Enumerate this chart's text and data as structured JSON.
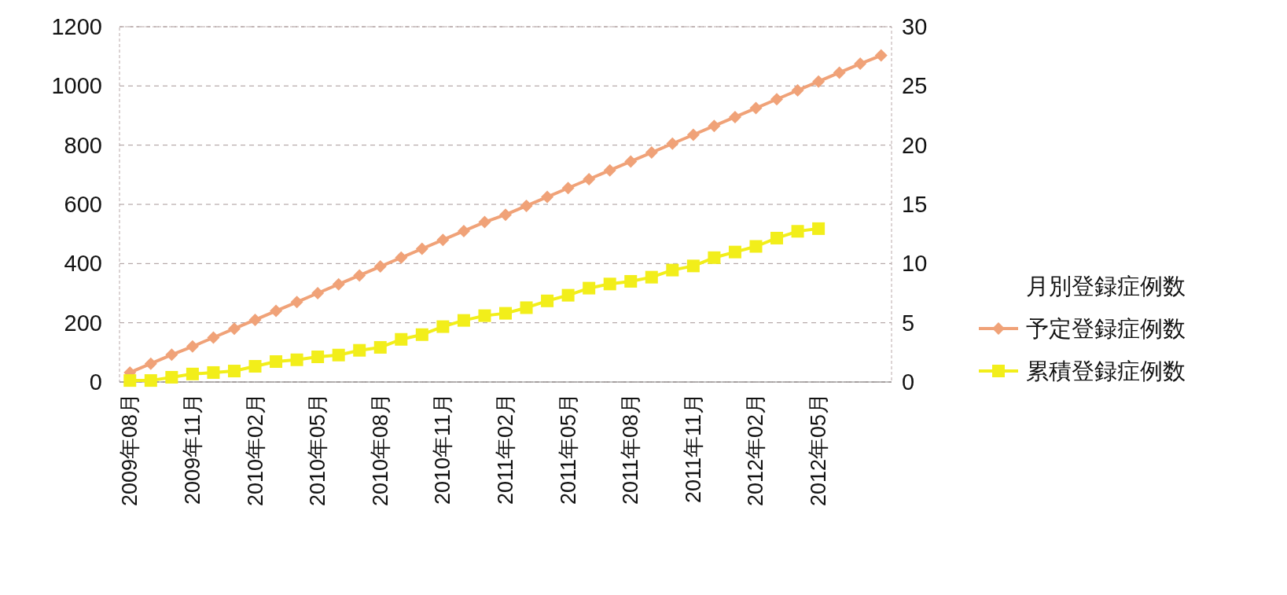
{
  "chart_data": {
    "type": "line",
    "categories": [
      "2009年08月",
      null,
      null,
      "2009年11月",
      null,
      null,
      "2010年02月",
      null,
      null,
      "2010年05月",
      null,
      null,
      "2010年08月",
      null,
      null,
      "2010年11月",
      null,
      null,
      "2011年02月",
      null,
      null,
      "2011年05月",
      null,
      null,
      "2011年08月",
      null,
      null,
      "2011年11月",
      null,
      null,
      "2012年02月",
      null,
      null,
      "2012年05月",
      null,
      null,
      null
    ],
    "series": [
      {
        "name": "月別登録症例数",
        "values": [
          null,
          null,
          null,
          null,
          null,
          null,
          null,
          null,
          null,
          null,
          null,
          null,
          null,
          null,
          null,
          null,
          null,
          null,
          null,
          null,
          null,
          null,
          null,
          null,
          null,
          null,
          null,
          null,
          null,
          null,
          null,
          null,
          null,
          null,
          null,
          null,
          null
        ]
      },
      {
        "name": "予定登録症例数",
        "marker": "diamond",
        "color": "#f0a278",
        "values": [
          32,
          62,
          92,
          120,
          150,
          180,
          210,
          240,
          270,
          300,
          330,
          360,
          390,
          420,
          450,
          480,
          510,
          540,
          565,
          595,
          625,
          655,
          685,
          715,
          745,
          775,
          805,
          835,
          865,
          895,
          925,
          955,
          985,
          1015,
          1045,
          1075,
          1103
        ]
      },
      {
        "name": "累積登録症例数",
        "marker": "square",
        "color": "#f2ee1a",
        "values": [
          5,
          5,
          16,
          27,
          32,
          37,
          53,
          69,
          75,
          85,
          91,
          107,
          117,
          144,
          160,
          187,
          208,
          224,
          232,
          251,
          274,
          293,
          317,
          331,
          340,
          354,
          378,
          392,
          420,
          439,
          458,
          486,
          509,
          518,
          null,
          null,
          null
        ]
      }
    ],
    "ylim": [
      0,
      1200
    ],
    "yticks": [
      0,
      200,
      400,
      600,
      800,
      1000,
      1200
    ],
    "y2lim": [
      0,
      30
    ],
    "y2ticks": [
      0,
      5,
      10,
      15,
      20,
      25,
      30
    ],
    "grid": "y",
    "legend": "right",
    "line_style": "solid"
  }
}
